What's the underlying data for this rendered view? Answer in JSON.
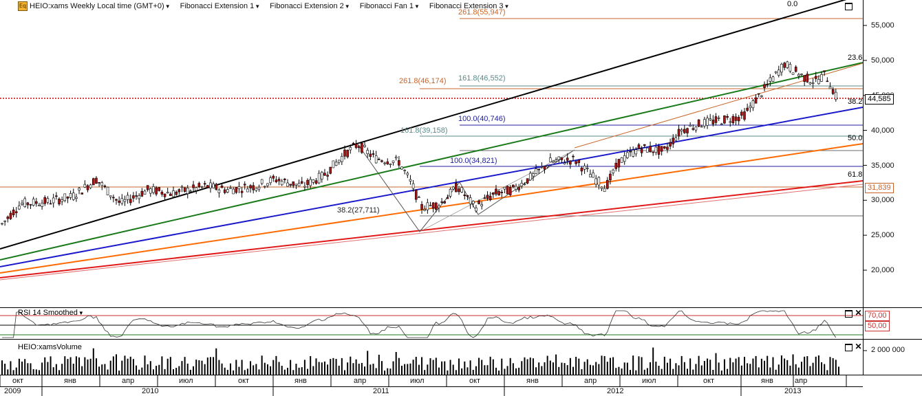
{
  "header": {
    "logo_icon": "eq-logo-icon",
    "items": [
      {
        "label": "HEIO:xams Weekly Local time (GMT+0)",
        "has_dropdown": true
      },
      {
        "label": "Fibonacci Extension 1",
        "has_dropdown": true
      },
      {
        "label": "Fibonacci Extension 2",
        "has_dropdown": true
      },
      {
        "label": "Fibonacci Fan 1",
        "has_dropdown": true
      },
      {
        "label": "Fibonacci Extension 3",
        "has_dropdown": true
      }
    ]
  },
  "price_panel": {
    "y_ticks": [
      "55,000",
      "50,000",
      "45,000",
      "40,000",
      "35,000",
      "30,000",
      "25,000",
      "20,000"
    ],
    "current_price": "44,585",
    "marker_price": "31,839",
    "fan_levels": [
      "0.0",
      "23.6",
      "38.2",
      "50.0",
      "61.8"
    ],
    "fib_labels": [
      "261.8(55,947)",
      "261.8(46,174)",
      "161.8(46,552)",
      "100.0(40,746)",
      "161.8(39,158)",
      "100.0(34,821)",
      "38.2(27,711)"
    ],
    "colors": {
      "fan_0": "#000000",
      "fan_236": "#1a7a1a",
      "fan_382": "#1a1acc",
      "fan_50": "#ff6a00",
      "fan_618": "#e01818",
      "fib1": "#c86428",
      "fib2": "#5a8a8a",
      "fib3": "#2020a0",
      "current_line": "#cc0000",
      "up_candle": "#ffffff",
      "down_candle": "#b01010"
    }
  },
  "rsi_panel": {
    "title": "RSI 14 Smoothed",
    "levels": [
      "70,00",
      "50,00"
    ]
  },
  "volume_panel": {
    "title": "HEIO:xamsVolume",
    "tick": "2 000 000"
  },
  "x_axis": {
    "months": [
      "окт",
      "янв",
      "апр",
      "июл",
      "окт",
      "янв",
      "апр",
      "июл",
      "окт",
      "янв",
      "апр",
      "июл",
      "окт",
      "янв",
      "апр"
    ],
    "years": [
      "2009",
      "2010",
      "2011",
      "2012",
      "2013"
    ]
  }
}
